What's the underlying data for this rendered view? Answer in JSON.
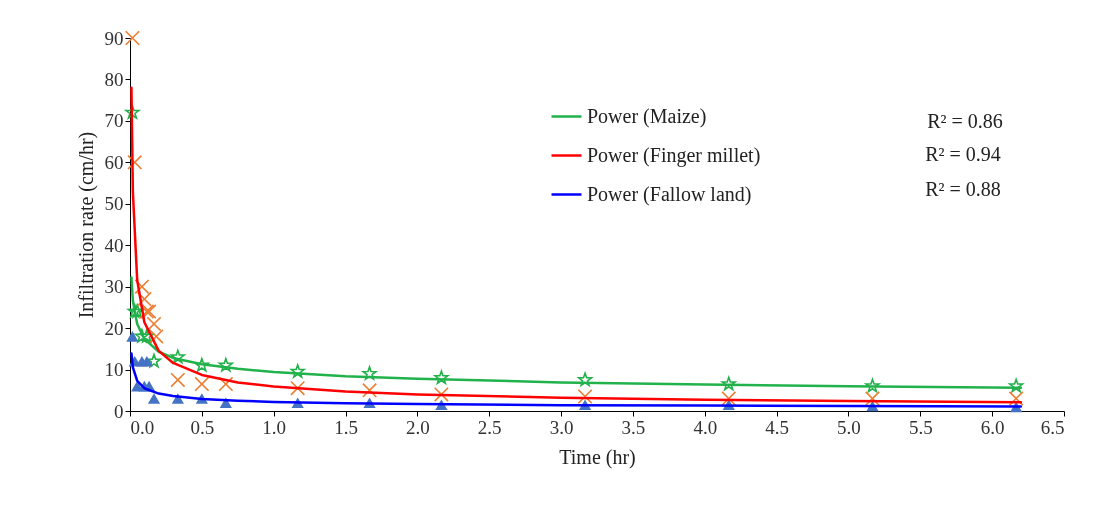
{
  "chart_data": {
    "type": "scatter",
    "xlabel": "Time (hr)",
    "ylabel": "Infiltration rate (cm/hr)",
    "xlim": [
      0,
      6.5
    ],
    "ylim": [
      0,
      90
    ],
    "xticks": [
      {
        "value": 0,
        "label": "0.0"
      },
      {
        "value": 0.5,
        "label": "0.5"
      },
      {
        "value": 1,
        "label": "1.0"
      },
      {
        "value": 1.5,
        "label": "1.5"
      },
      {
        "value": 2,
        "label": "2.0"
      },
      {
        "value": 2.5,
        "label": "2.5"
      },
      {
        "value": 3,
        "label": "3.0"
      },
      {
        "value": 3.5,
        "label": "3.5"
      },
      {
        "value": 4,
        "label": "4.0"
      },
      {
        "value": 4.5,
        "label": "4.5"
      },
      {
        "value": 5,
        "label": "5.0"
      },
      {
        "value": 5.5,
        "label": "5.5"
      },
      {
        "value": 6,
        "label": "6.0"
      },
      {
        "value": 6.5,
        "label": "6.5"
      }
    ],
    "yticks": [
      0,
      10,
      20,
      30,
      40,
      50,
      60,
      70,
      80,
      90
    ],
    "grid": false,
    "legend": "top right",
    "annotations": [
      "R² = 0.86",
      "R² = 0.94",
      "R² = 0.88"
    ],
    "series": [
      {
        "marker": "star",
        "color": "#22b04b",
        "x": [
          0.017,
          0.033,
          0.05,
          0.083,
          0.117,
          0.167,
          0.333,
          0.5,
          0.667,
          1.167,
          1.667,
          2.167,
          3.167,
          4.167,
          5.167,
          6.167
        ],
        "values": [
          72,
          24,
          24,
          18,
          18,
          12,
          13,
          11,
          11,
          9.5,
          9,
          8,
          7.5,
          6.5,
          6,
          6
        ]
      },
      {
        "marker": "cross",
        "color": "#ed7d31",
        "x": [
          0.017,
          0.033,
          0.083,
          0.1,
          0.117,
          0.133,
          0.167,
          0.183,
          0.333,
          0.5,
          0.667,
          1.167,
          1.667,
          2.167,
          3.167,
          4.167,
          5.167,
          6.167
        ],
        "values": [
          90,
          60,
          30,
          27,
          24,
          24,
          21,
          18,
          7.5,
          6.5,
          6.5,
          5.5,
          5,
          4,
          3.5,
          3,
          3,
          3
        ]
      },
      {
        "marker": "triangle",
        "color": "#4472c4",
        "x": [
          0.017,
          0.033,
          0.05,
          0.083,
          0.1,
          0.117,
          0.133,
          0.167,
          0.333,
          0.5,
          0.667,
          1.167,
          1.667,
          2.167,
          3.167,
          4.167,
          5.167,
          6.167
        ],
        "values": [
          18,
          12,
          6,
          12,
          6,
          12,
          6,
          3,
          3,
          3,
          2,
          2,
          2,
          1.5,
          1.5,
          1.5,
          1.2,
          1
        ]
      },
      {
        "type": "line",
        "name": "Power (Maize)",
        "color": "#21b24b",
        "x": [
          0.01,
          0.02,
          0.05,
          0.1,
          0.2,
          0.3,
          0.5,
          0.75,
          1,
          1.5,
          2,
          3,
          4,
          5,
          6.2
        ],
        "values": [
          32.2,
          26.6,
          21.0,
          17.4,
          14.3,
          12.8,
          11.3,
          10.2,
          9.4,
          8.4,
          7.8,
          6.9,
          6.4,
          6.0,
          5.6
        ]
      },
      {
        "type": "line",
        "name": "Power (Finger millet)",
        "color": "#ff0000",
        "x": [
          0.01,
          0.02,
          0.05,
          0.1,
          0.2,
          0.3,
          0.5,
          0.75,
          1,
          1.5,
          2,
          3,
          4,
          5,
          6.2
        ],
        "values": [
          78,
          52.8,
          31.6,
          21.4,
          14.5,
          11.6,
          8.7,
          6.9,
          5.9,
          4.7,
          4.0,
          3.2,
          2.7,
          2.4,
          2.1
        ]
      },
      {
        "type": "line",
        "name": "Power (Fallow land)",
        "color": "#0000ff",
        "x": [
          0.01,
          0.02,
          0.05,
          0.1,
          0.2,
          0.3,
          0.5,
          0.75,
          1,
          1.5,
          2,
          3,
          4,
          5,
          6.2
        ],
        "values": [
          13.9,
          10.5,
          7.3,
          5.5,
          4.2,
          3.6,
          2.9,
          2.5,
          2.2,
          1.9,
          1.7,
          1.4,
          1.3,
          1.2,
          1.1
        ]
      }
    ]
  }
}
